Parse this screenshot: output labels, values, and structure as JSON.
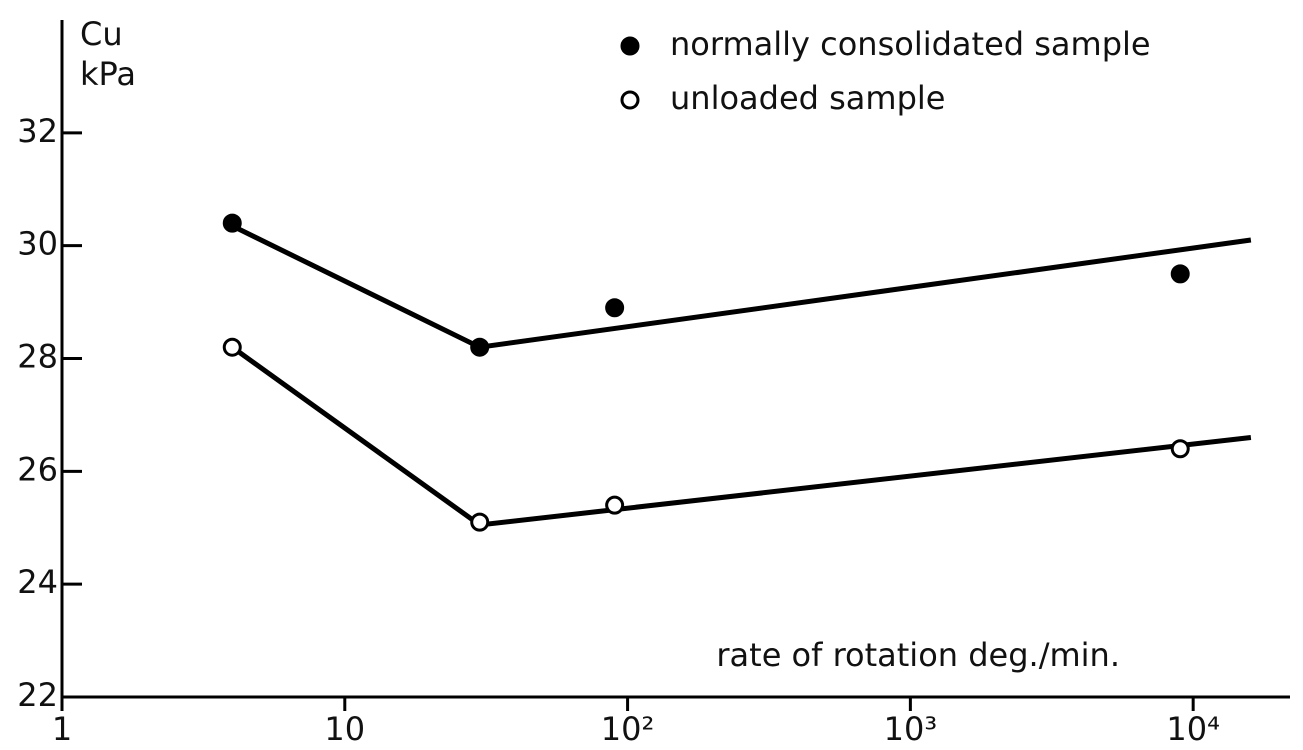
{
  "chart_data": {
    "type": "scatter",
    "y_label": [
      "Cu",
      "kPa"
    ],
    "x_label": "rate of rotation   deg./min.",
    "x_log": true,
    "xlim": [
      1,
      22000
    ],
    "xticks": [
      1,
      10,
      {
        "value": 100,
        "label": "10²"
      },
      {
        "value": 1000,
        "label": "10³"
      },
      {
        "value": 10000,
        "label": "10⁴"
      }
    ],
    "ylim": [
      22,
      34
    ],
    "yticks": [
      22,
      24,
      26,
      28,
      30,
      32
    ],
    "legend": "top",
    "series": [
      {
        "name": "normally consolidated sample",
        "color": "#000000",
        "filled": true,
        "x": [
          4,
          30,
          90,
          9000
        ],
        "values": [
          30.4,
          28.2,
          28.9,
          29.5
        ],
        "line_x": [
          4,
          30,
          16000
        ],
        "line_values": [
          30.35,
          28.2,
          30.1
        ]
      },
      {
        "name": "unloaded sample",
        "color": "#000000",
        "filled": false,
        "x": [
          4,
          30,
          90,
          9000
        ],
        "values": [
          28.2,
          25.1,
          25.4,
          26.4
        ],
        "line_x": [
          4,
          30,
          16000
        ],
        "line_values": [
          28.2,
          25.05,
          26.6
        ]
      }
    ]
  }
}
